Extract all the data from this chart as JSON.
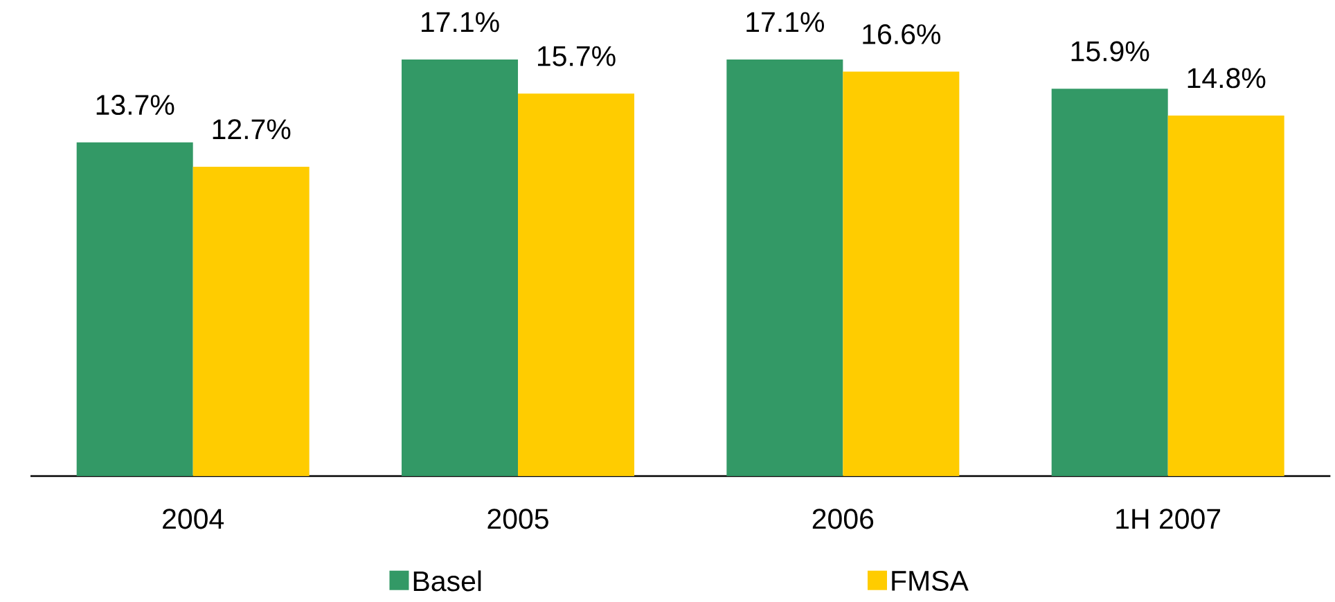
{
  "chart_data": {
    "type": "bar",
    "categories": [
      "2004",
      "2005",
      "2006",
      "1H 2007"
    ],
    "series": [
      {
        "name": "Basel",
        "color": "#339966",
        "values": [
          13.7,
          17.1,
          17.1,
          15.9
        ],
        "value_labels": [
          "13.7%",
          "17.1%",
          "17.1%",
          "15.9%"
        ]
      },
      {
        "name": "FMSA",
        "color": "#ffcc00",
        "values": [
          12.7,
          15.7,
          16.6,
          14.8
        ],
        "value_labels": [
          "12.7%",
          "15.7%",
          "16.6%",
          "14.8%"
        ]
      }
    ],
    "legend": "bottom"
  }
}
